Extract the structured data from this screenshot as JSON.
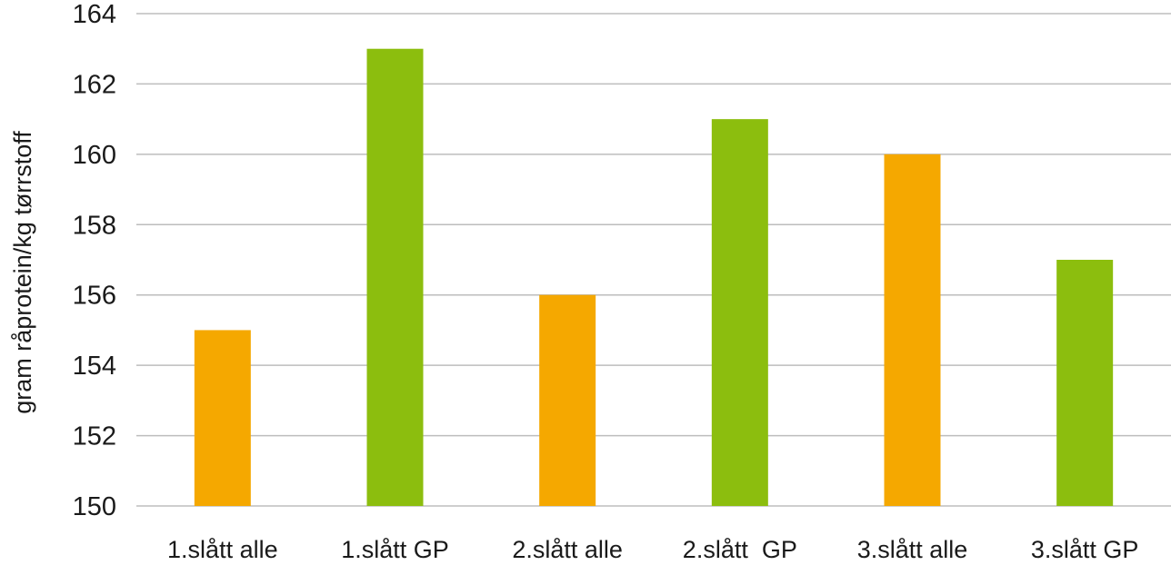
{
  "chart_data": {
    "type": "bar",
    "title": "",
    "xlabel": "",
    "ylabel": "gram råprotein/kg tørrstoff",
    "ylim": [
      150,
      164
    ],
    "yticks": [
      150,
      152,
      154,
      156,
      158,
      160,
      162,
      164
    ],
    "grid": true,
    "categories": [
      "1.slått alle",
      "1.slått GP",
      "2.slått alle",
      "2.slått  GP",
      "3.slått alle",
      "3.slått GP"
    ],
    "values": [
      155,
      163,
      156,
      161,
      160,
      157
    ],
    "colors": [
      "#F5A800",
      "#8CBE0E",
      "#F5A800",
      "#8CBE0E",
      "#F5A800",
      "#8CBE0E"
    ]
  }
}
